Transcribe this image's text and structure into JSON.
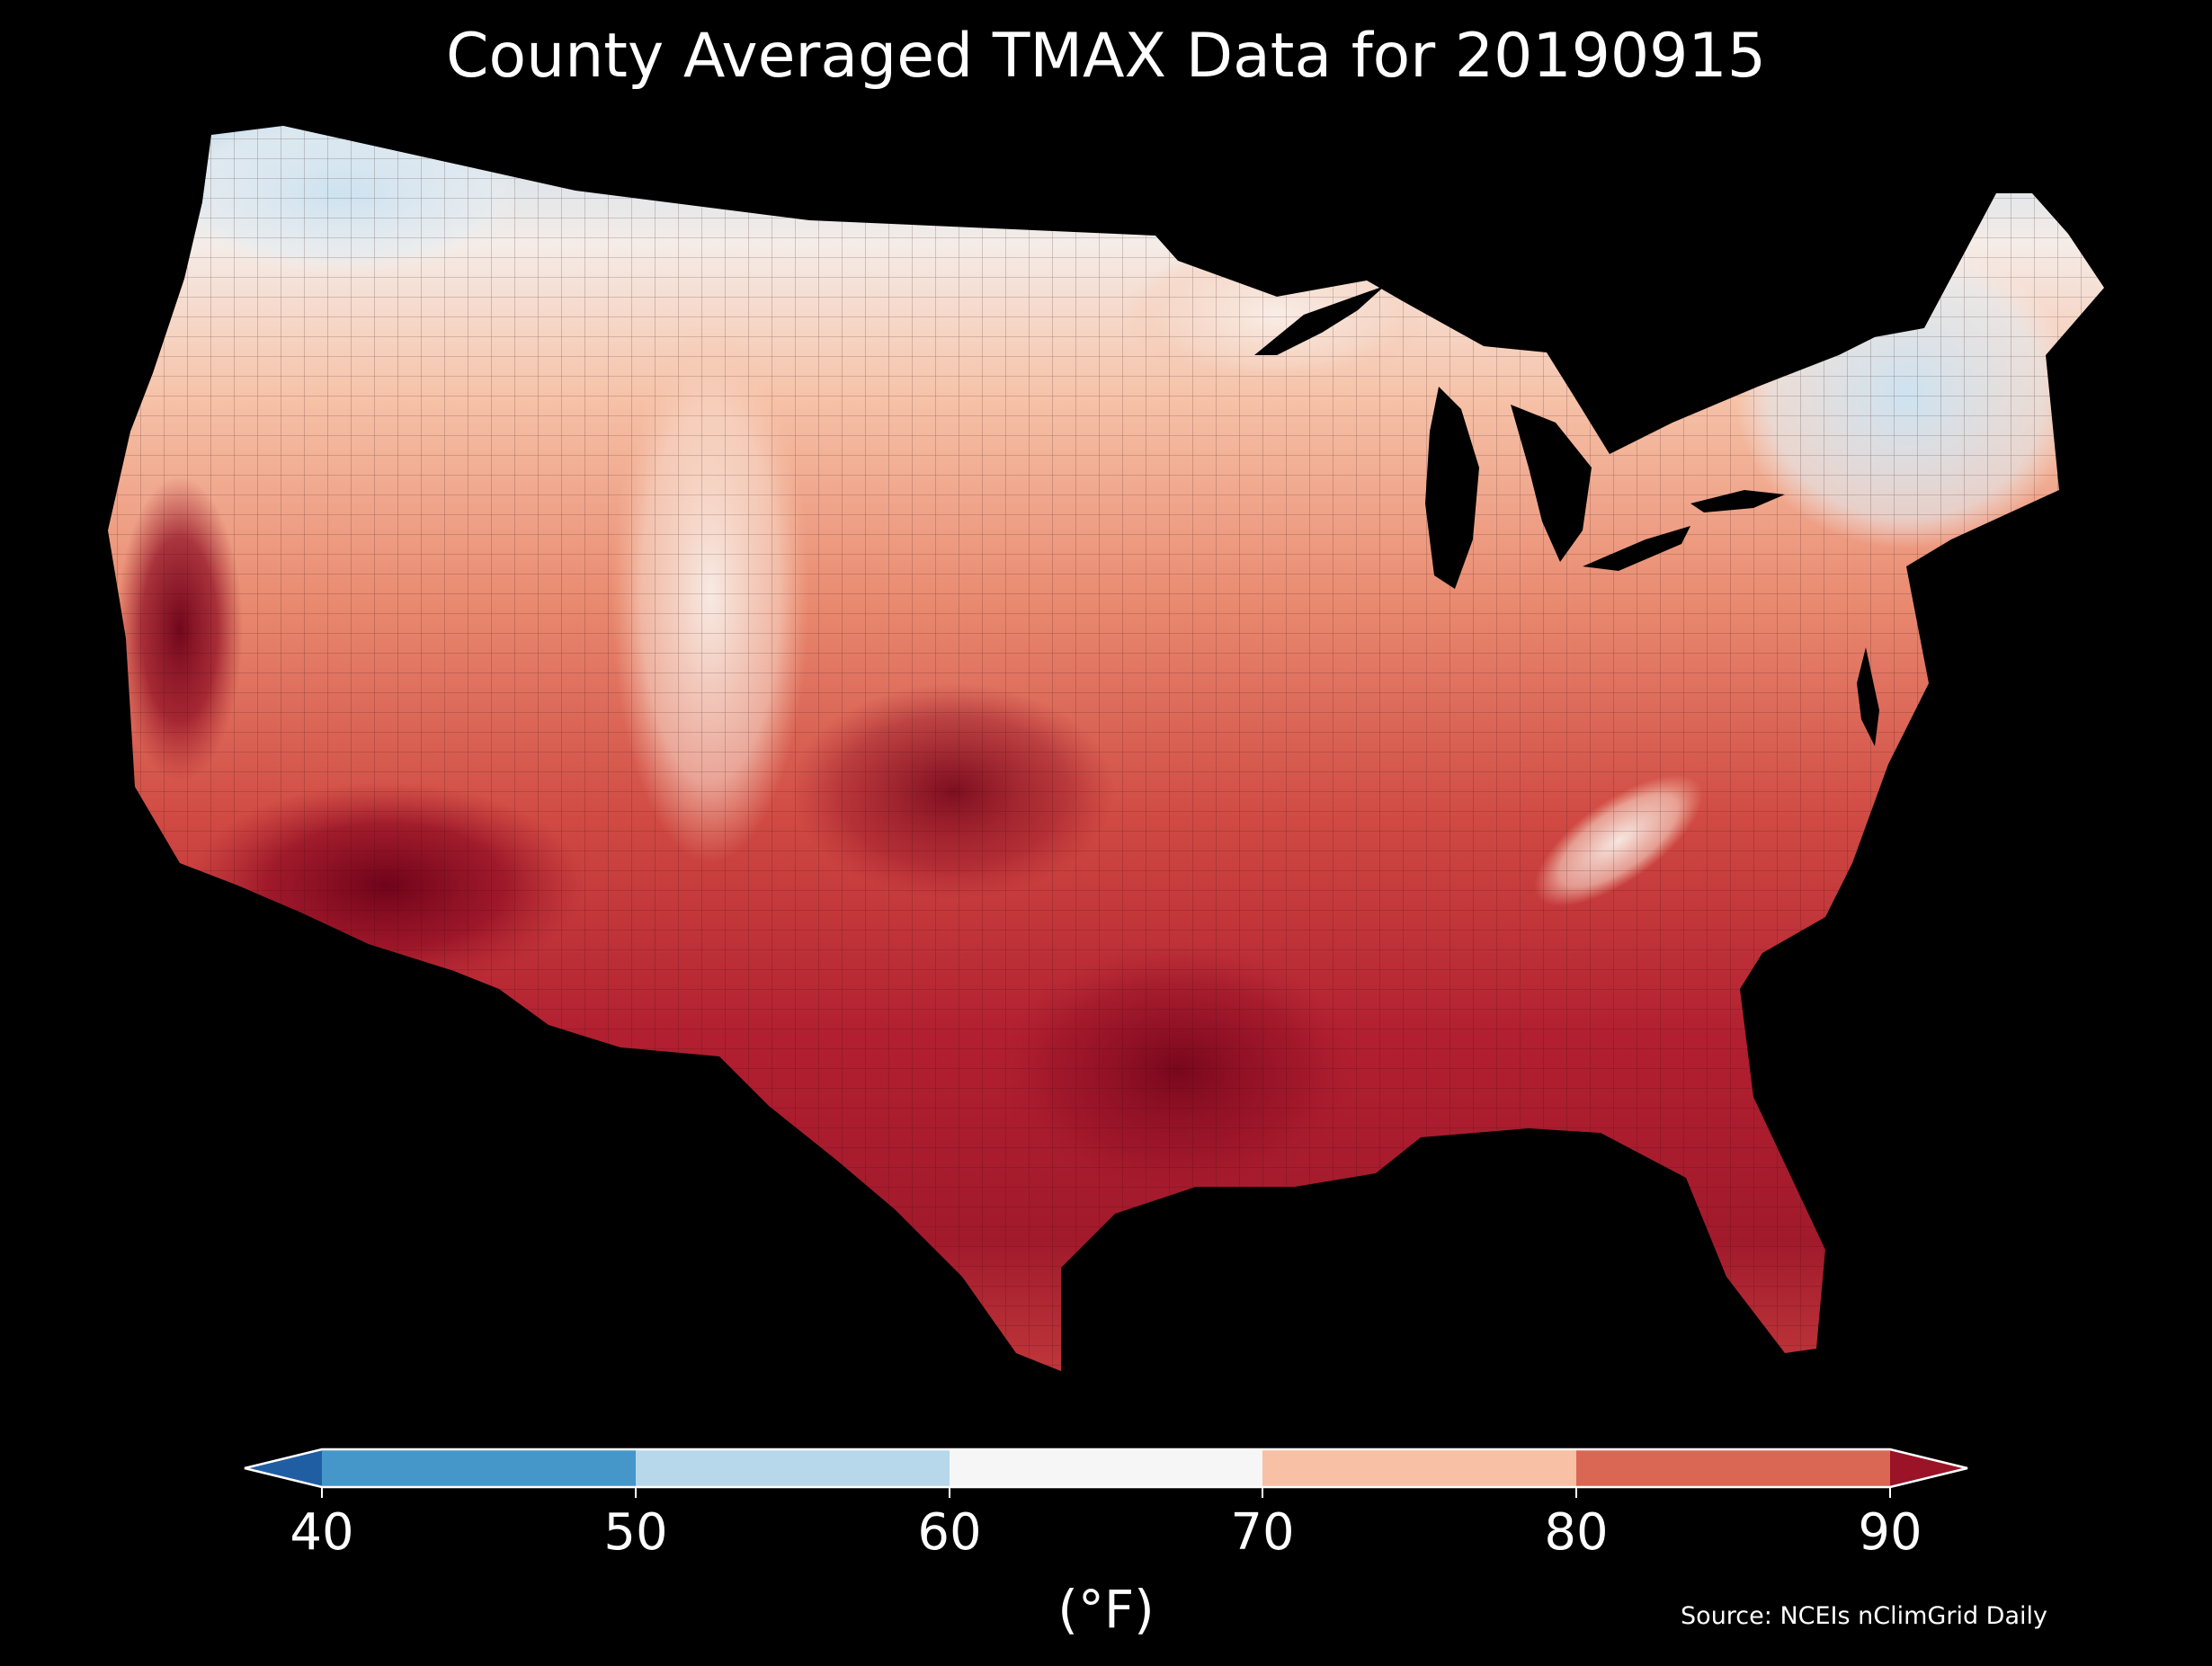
{
  "title": "County Averaged TMAX Data for 20190915",
  "source": "Source: NCEIs nClimGrid Daily",
  "colorbar": {
    "unit_label": "(°F)",
    "ticks": [
      "40",
      "50",
      "60",
      "70",
      "80",
      "90"
    ],
    "bins": [
      {
        "range": "<40",
        "color": "#1f5ea3"
      },
      {
        "range": "40-50",
        "color": "#4597c9"
      },
      {
        "range": "50-60",
        "color": "#b7d8eb"
      },
      {
        "range": "60-70",
        "color": "#f6f6f6"
      },
      {
        "range": "70-80",
        "color": "#f8c0a5"
      },
      {
        "range": "80-90",
        "color": "#da6754"
      },
      {
        "range": ">90",
        "color": "#9a1327"
      }
    ]
  },
  "map": {
    "region": "Contiguous United States",
    "unit": "county",
    "variable": "TMAX",
    "background": "#000000"
  },
  "chart_data": {
    "type": "heatmap",
    "title": "County Averaged TMAX Data for 20190915",
    "colorbar_label": "(°F)",
    "colorbar_range": [
      40,
      90
    ],
    "colorbar_extend": "both",
    "colorbar_ticks": [
      40,
      50,
      60,
      70,
      80,
      90
    ]
  }
}
